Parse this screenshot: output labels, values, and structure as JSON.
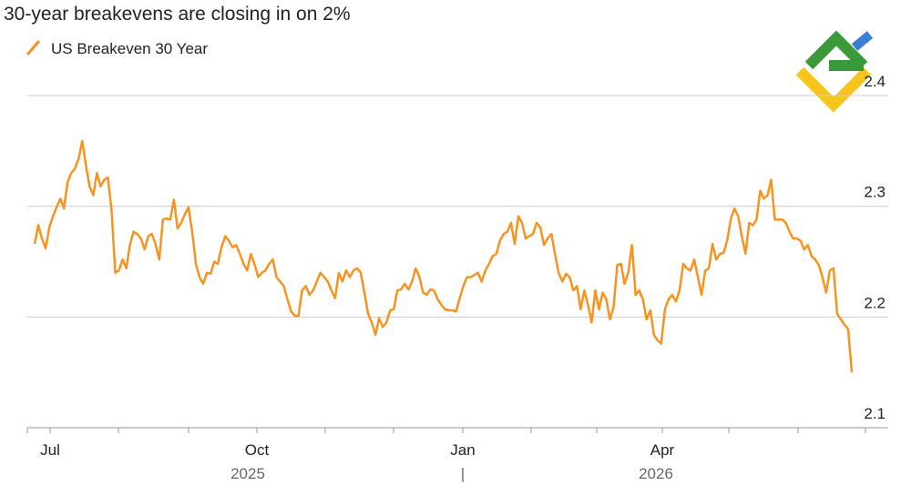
{
  "chart_data": {
    "type": "line",
    "title": "30-year breakevens are closing in on 2%",
    "series": [
      {
        "name": "US Breakeven 30 Year",
        "color": "#f7931e",
        "values": [
          2.266,
          2.283,
          2.271,
          2.262,
          2.281,
          2.291,
          2.299,
          2.307,
          2.298,
          2.322,
          2.33,
          2.334,
          2.343,
          2.359,
          2.337,
          2.318,
          2.31,
          2.33,
          2.318,
          2.324,
          2.326,
          2.296,
          2.24,
          2.242,
          2.252,
          2.244,
          2.265,
          2.277,
          2.275,
          2.271,
          2.261,
          2.273,
          2.275,
          2.266,
          2.252,
          2.288,
          2.289,
          2.288,
          2.306,
          2.28,
          2.285,
          2.293,
          2.299,
          2.277,
          2.248,
          2.236,
          2.23,
          2.24,
          2.239,
          2.25,
          2.248,
          2.263,
          2.273,
          2.269,
          2.263,
          2.265,
          2.257,
          2.248,
          2.242,
          2.257,
          2.248,
          2.236,
          2.24,
          2.242,
          2.248,
          2.252,
          2.236,
          2.232,
          2.228,
          2.216,
          2.205,
          2.201,
          2.201,
          2.224,
          2.228,
          2.22,
          2.224,
          2.232,
          2.24,
          2.236,
          2.232,
          2.224,
          2.217,
          2.24,
          2.232,
          2.242,
          2.236,
          2.242,
          2.244,
          2.24,
          2.222,
          2.203,
          2.195,
          2.184,
          2.199,
          2.191,
          2.195,
          2.206,
          2.207,
          2.224,
          2.225,
          2.23,
          2.225,
          2.232,
          2.244,
          2.236,
          2.222,
          2.22,
          2.225,
          2.224,
          2.216,
          2.211,
          2.207,
          2.206,
          2.206,
          2.205,
          2.217,
          2.228,
          2.236,
          2.236,
          2.238,
          2.24,
          2.232,
          2.242,
          2.248,
          2.255,
          2.257,
          2.269,
          2.275,
          2.277,
          2.285,
          2.266,
          2.291,
          2.285,
          2.271,
          2.273,
          2.275,
          2.285,
          2.281,
          2.265,
          2.271,
          2.275,
          2.257,
          2.24,
          2.232,
          2.239,
          2.236,
          2.224,
          2.228,
          2.207,
          2.224,
          2.211,
          2.195,
          2.224,
          2.207,
          2.222,
          2.216,
          2.198,
          2.209,
          2.247,
          2.248,
          2.23,
          2.24,
          2.265,
          2.22,
          2.224,
          2.216,
          2.198,
          2.206,
          2.184,
          2.179,
          2.176,
          2.207,
          2.216,
          2.22,
          2.214,
          2.224,
          2.248,
          2.244,
          2.242,
          2.252,
          2.236,
          2.22,
          2.242,
          2.244,
          2.266,
          2.252,
          2.257,
          2.258,
          2.269,
          2.289,
          2.298,
          2.291,
          2.273,
          2.257,
          2.285,
          2.283,
          2.288,
          2.314,
          2.307,
          2.31,
          2.324,
          2.288,
          2.288,
          2.288,
          2.285,
          2.277,
          2.271,
          2.271,
          2.269,
          2.261,
          2.265,
          2.255,
          2.252,
          2.247,
          2.236,
          2.222,
          2.242,
          2.244,
          2.203,
          2.198,
          2.193,
          2.189,
          2.15
        ]
      }
    ],
    "x_tick_labels": [
      "Jul",
      "Oct",
      "Jan",
      "Apr"
    ],
    "x_year_labels": [
      "2025",
      "|",
      "2026"
    ],
    "ylim": [
      2.1,
      2.4
    ],
    "yticks": [
      2.1,
      2.2,
      2.3,
      2.4
    ],
    "grid": true
  }
}
